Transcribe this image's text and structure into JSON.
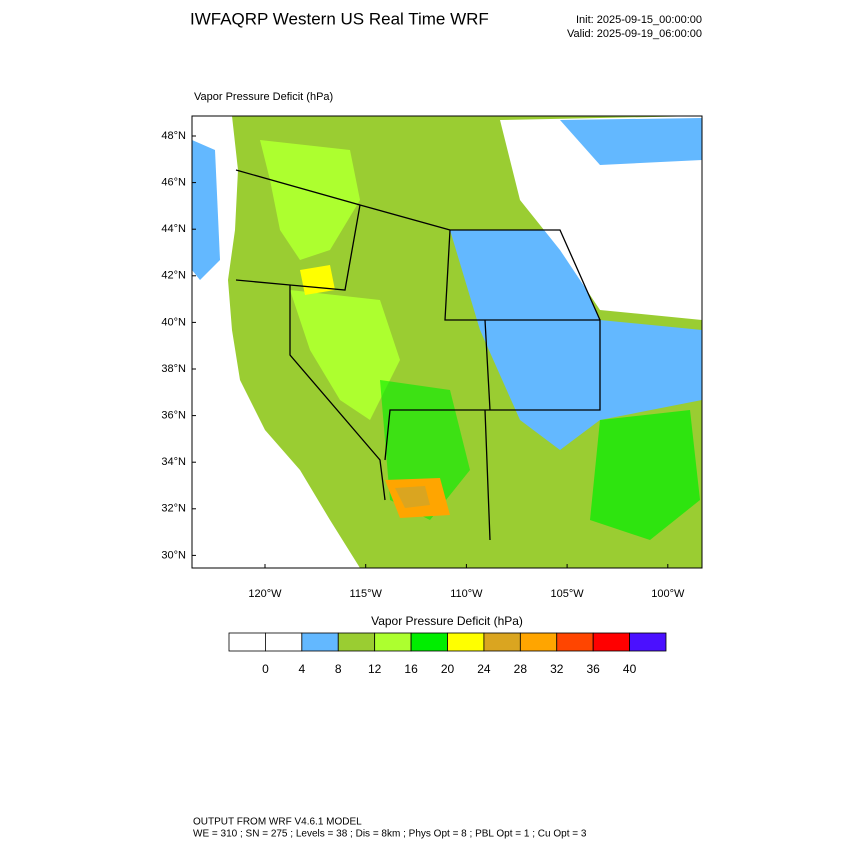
{
  "header": {
    "title": "IWFAQRP Western US Real Time WRF",
    "init": "Init: 2025-09-15_00:00:00",
    "valid": "Valid: 2025-09-19_06:00:00"
  },
  "map": {
    "label": "Vapor Pressure Deficit   (hPa)",
    "lat_labels": [
      "48°N",
      "46°N",
      "44°N",
      "42°N",
      "40°N",
      "38°N",
      "36°N",
      "34°N",
      "32°N",
      "30°N"
    ],
    "lon_labels": [
      "120°W",
      "115°W",
      "110°W",
      "105°W",
      "100°W"
    ]
  },
  "colorbar": {
    "title": "Vapor Pressure Deficit  (hPa)",
    "colors": [
      "#ffffff",
      "#ffffff",
      "#63b8ff",
      "#9acd32",
      "#adff2f",
      "#00ee00",
      "#ffff00",
      "#daa520",
      "#ffa500",
      "#ff4500",
      "#ff0000",
      "#4b10ff"
    ],
    "labels": [
      0,
      4,
      8,
      12,
      16,
      20,
      24,
      28,
      32,
      36,
      40
    ]
  },
  "footer": {
    "line1": "OUTPUT FROM WRF V4.6.1 MODEL",
    "line2": "WE = 310 ; SN = 275 ; Levels = 38 ; Dis = 8km ; Phys Opt = 8 ; PBL Opt = 1 ; Cu Opt = 3"
  }
}
